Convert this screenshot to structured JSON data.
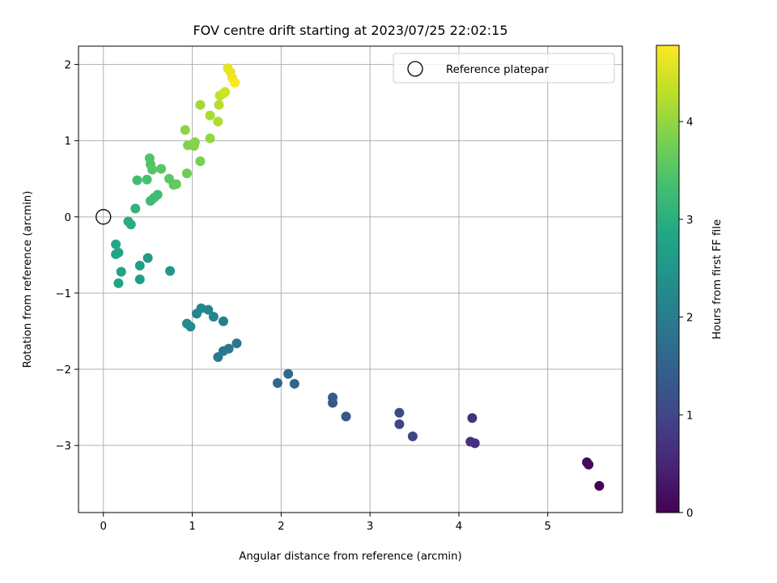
{
  "chart_data": {
    "type": "scatter",
    "title": "FOV centre drift starting at 2023/07/25 22:02:15",
    "xlabel": "Angular distance from reference (arcmin)",
    "ylabel": "Rotation from reference (arcmin)",
    "xlim": [
      -0.28,
      5.84
    ],
    "ylim": [
      -3.88,
      2.24
    ],
    "xticks": [
      "0",
      "1",
      "2",
      "3",
      "4",
      "5"
    ],
    "yticks": [
      "−3",
      "−2",
      "−1",
      "0",
      "1",
      "2"
    ],
    "grid": true,
    "legend": {
      "position": "top-right",
      "entries": [
        "Reference platepar"
      ]
    },
    "reference_point": {
      "x": 0,
      "y": 0
    },
    "colorbar": {
      "label": "Hours from first FF file",
      "range": [
        0,
        4.78
      ],
      "ticks": [
        "0",
        "1",
        "2",
        "3",
        "4"
      ],
      "colormap": "viridis"
    },
    "series": [
      {
        "points": [
          {
            "x": 5.58,
            "y": -3.53,
            "c": 0.0
          },
          {
            "x": 5.46,
            "y": -3.25,
            "c": 0.1
          },
          {
            "x": 5.44,
            "y": -3.22,
            "c": 0.15
          },
          {
            "x": 4.18,
            "y": -2.97,
            "c": 0.65
          },
          {
            "x": 4.13,
            "y": -2.95,
            "c": 0.7
          },
          {
            "x": 4.15,
            "y": -2.64,
            "c": 0.68
          },
          {
            "x": 3.48,
            "y": -2.88,
            "c": 0.95
          },
          {
            "x": 3.33,
            "y": -2.72,
            "c": 1.0
          },
          {
            "x": 3.33,
            "y": -2.57,
            "c": 1.02
          },
          {
            "x": 2.73,
            "y": -2.62,
            "c": 1.3
          },
          {
            "x": 2.58,
            "y": -2.44,
            "c": 1.35
          },
          {
            "x": 2.58,
            "y": -2.37,
            "c": 1.38
          },
          {
            "x": 2.15,
            "y": -2.19,
            "c": 1.55
          },
          {
            "x": 2.08,
            "y": -2.06,
            "c": 1.6
          },
          {
            "x": 1.96,
            "y": -2.18,
            "c": 1.62
          },
          {
            "x": 1.5,
            "y": -1.66,
            "c": 1.85
          },
          {
            "x": 1.41,
            "y": -1.73,
            "c": 1.9
          },
          {
            "x": 1.35,
            "y": -1.76,
            "c": 1.92
          },
          {
            "x": 1.29,
            "y": -1.84,
            "c": 1.95
          },
          {
            "x": 1.35,
            "y": -1.37,
            "c": 2.05
          },
          {
            "x": 1.24,
            "y": -1.31,
            "c": 2.1
          },
          {
            "x": 1.18,
            "y": -1.22,
            "c": 2.15
          },
          {
            "x": 1.1,
            "y": -1.2,
            "c": 2.18
          },
          {
            "x": 1.05,
            "y": -1.27,
            "c": 2.2
          },
          {
            "x": 0.98,
            "y": -1.44,
            "c": 2.25
          },
          {
            "x": 0.94,
            "y": -1.4,
            "c": 2.27
          },
          {
            "x": 0.75,
            "y": -0.71,
            "c": 2.5
          },
          {
            "x": 0.5,
            "y": -0.54,
            "c": 2.6
          },
          {
            "x": 0.41,
            "y": -0.64,
            "c": 2.65
          },
          {
            "x": 0.41,
            "y": -0.82,
            "c": 2.67
          },
          {
            "x": 0.2,
            "y": -0.72,
            "c": 2.75
          },
          {
            "x": 0.17,
            "y": -0.87,
            "c": 2.78
          },
          {
            "x": 0.17,
            "y": -0.47,
            "c": 2.8
          },
          {
            "x": 0.14,
            "y": -0.49,
            "c": 2.82
          },
          {
            "x": 0.14,
            "y": -0.36,
            "c": 2.85
          },
          {
            "x": 0.28,
            "y": -0.06,
            "c": 2.95
          },
          {
            "x": 0.31,
            "y": -0.1,
            "c": 2.97
          },
          {
            "x": 0.36,
            "y": 0.11,
            "c": 3.1
          },
          {
            "x": 0.38,
            "y": 0.48,
            "c": 3.3
          },
          {
            "x": 0.49,
            "y": 0.49,
            "c": 3.35
          },
          {
            "x": 0.53,
            "y": 0.21,
            "c": 3.25
          },
          {
            "x": 0.57,
            "y": 0.25,
            "c": 3.27
          },
          {
            "x": 0.61,
            "y": 0.29,
            "c": 3.3
          },
          {
            "x": 0.52,
            "y": 0.77,
            "c": 3.45
          },
          {
            "x": 0.53,
            "y": 0.69,
            "c": 3.47
          },
          {
            "x": 0.55,
            "y": 0.62,
            "c": 3.5
          },
          {
            "x": 0.65,
            "y": 0.63,
            "c": 3.52
          },
          {
            "x": 0.74,
            "y": 0.5,
            "c": 3.55
          },
          {
            "x": 0.79,
            "y": 0.42,
            "c": 3.6
          },
          {
            "x": 0.82,
            "y": 0.43,
            "c": 3.62
          },
          {
            "x": 0.94,
            "y": 0.57,
            "c": 3.7
          },
          {
            "x": 0.95,
            "y": 0.94,
            "c": 3.85
          },
          {
            "x": 1.02,
            "y": 0.93,
            "c": 3.87
          },
          {
            "x": 1.03,
            "y": 0.98,
            "c": 3.9
          },
          {
            "x": 0.92,
            "y": 1.14,
            "c": 3.95
          },
          {
            "x": 1.09,
            "y": 0.73,
            "c": 3.8
          },
          {
            "x": 1.2,
            "y": 1.03,
            "c": 4.0
          },
          {
            "x": 1.09,
            "y": 1.47,
            "c": 4.1
          },
          {
            "x": 1.2,
            "y": 1.33,
            "c": 4.15
          },
          {
            "x": 1.29,
            "y": 1.25,
            "c": 4.2
          },
          {
            "x": 1.3,
            "y": 1.47,
            "c": 4.25
          },
          {
            "x": 1.31,
            "y": 1.59,
            "c": 4.35
          },
          {
            "x": 1.35,
            "y": 1.62,
            "c": 4.4
          },
          {
            "x": 1.37,
            "y": 1.64,
            "c": 4.45
          },
          {
            "x": 1.4,
            "y": 1.95,
            "c": 4.6
          },
          {
            "x": 1.43,
            "y": 1.9,
            "c": 4.62
          },
          {
            "x": 1.45,
            "y": 1.82,
            "c": 4.68
          },
          {
            "x": 1.48,
            "y": 1.76,
            "c": 4.75
          }
        ]
      }
    ]
  }
}
